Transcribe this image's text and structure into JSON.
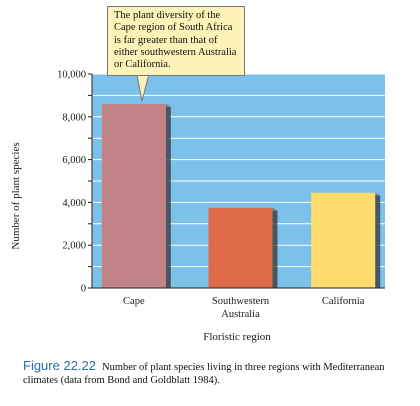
{
  "chart_data": {
    "type": "bar",
    "categories": [
      "Cape",
      "Southwestern Australia",
      "California"
    ],
    "category_lines": [
      [
        "Cape"
      ],
      [
        "Southwestern",
        "Australia"
      ],
      [
        "California"
      ]
    ],
    "values": [
      8600,
      3750,
      4450
    ],
    "bar_colors": [
      "#c38285",
      "#dd6b47",
      "#fddc6e"
    ],
    "ylim": [
      0,
      10000
    ],
    "yticks": [
      0,
      2000,
      4000,
      6000,
      8000,
      10000
    ],
    "ytick_labels": [
      "0",
      "2,000",
      "4,000",
      "6,000",
      "8,000",
      "10,000"
    ],
    "xlabel": "Floristic region",
    "ylabel": "Number of plant species",
    "grid": true,
    "background_color": "#7cc1ea",
    "annotation": "The plant diversity of the Cape region of South Africa is far greater than that of either southwestern Australia or California."
  },
  "caption": {
    "label": "Figure 22.22",
    "text": "Number of plant species living in three regions with Mediterranean climates (data from Bond and Goldblatt 1984)."
  },
  "colors": {
    "plot_background": "#7cc1ea",
    "callout_background": "#fdf2b8",
    "caption_label": "#2b6cb0"
  }
}
